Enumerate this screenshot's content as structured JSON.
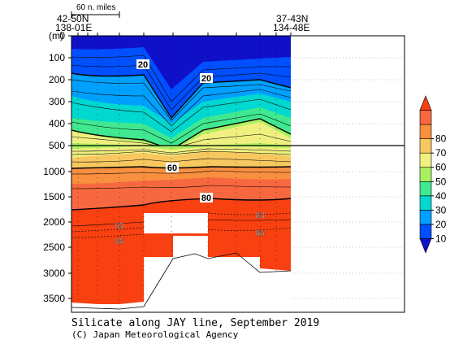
{
  "chart_data": {
    "type": "heatmap",
    "title": "Silicate along JAY line, September 2019",
    "credit": "(C) Japan Meteorological Agency",
    "ylabel": "(m)",
    "y_ticks_upper": [
      0,
      100,
      200,
      300,
      400,
      500
    ],
    "y_ticks_lower": [
      1000,
      1500,
      2000,
      2500,
      3000,
      3500
    ],
    "scale_bar_label": "60 n. miles",
    "station_left": [
      "42-50N",
      "138-01E"
    ],
    "station_right": [
      "37-43N",
      "134-48E"
    ],
    "colorbar": {
      "ticks": [
        10,
        20,
        30,
        40,
        50,
        60,
        70,
        80
      ],
      "colors": [
        "#1010c8",
        "#0050ff",
        "#00a0ff",
        "#00d8d0",
        "#40e890",
        "#a8f060",
        "#f0f080",
        "#f8c860",
        "#f89040",
        "#f86840",
        "#f84010"
      ]
    },
    "contour_labels": [
      {
        "text": "20",
        "depth": 120
      },
      {
        "text": "20",
        "depth": 190
      },
      {
        "text": "60",
        "depth": 700
      },
      {
        "text": "80",
        "depth": 1380
      },
      {
        "text": "83",
        "depth": 2050
      },
      {
        "text": "86",
        "depth": 2300
      },
      {
        "text": "83",
        "depth": 1920
      },
      {
        "text": "86",
        "depth": 2220
      }
    ]
  }
}
